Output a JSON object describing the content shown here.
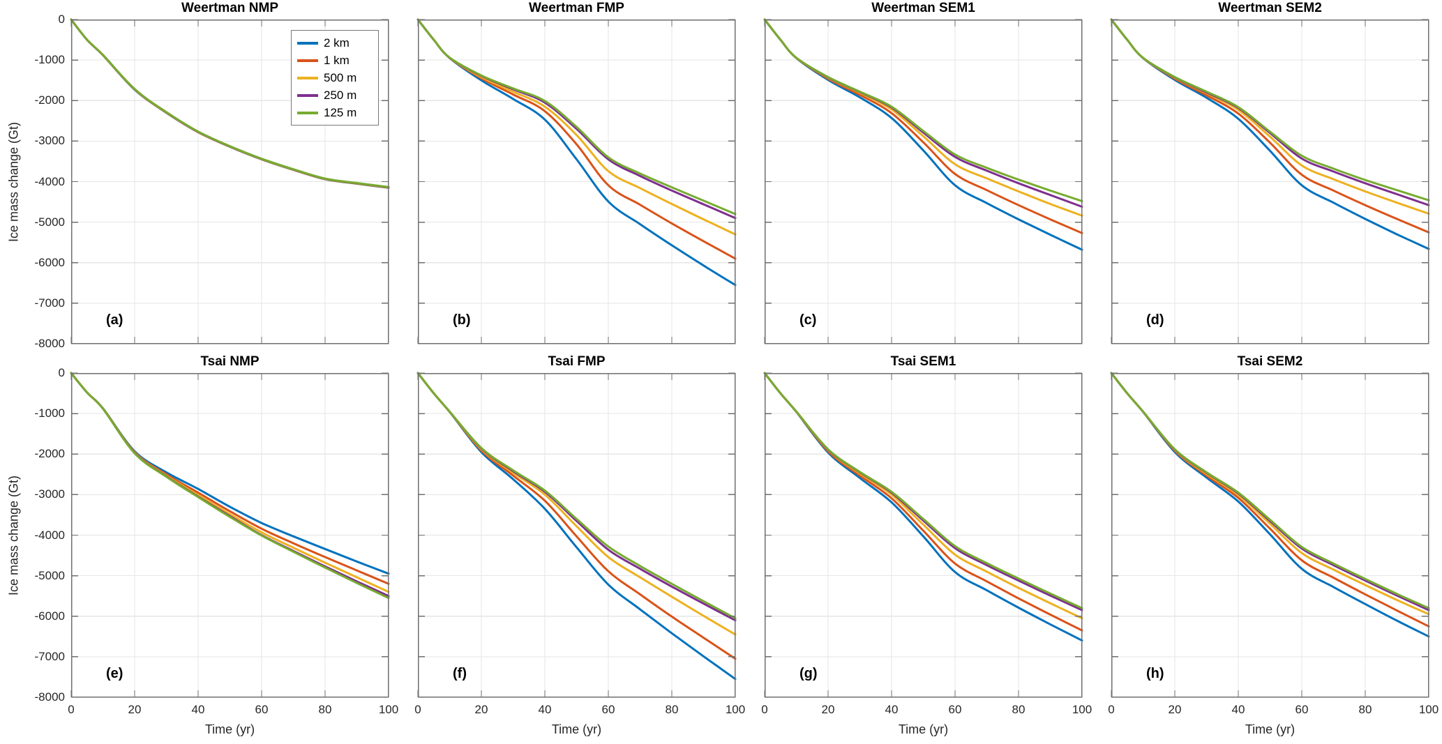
{
  "chart_data": {
    "type": "line",
    "description": "2x4 grid of small-multiple line charts of ice mass change vs time for two friction laws (Weertman, Tsai) and four melt parameterizations (NMP, FMP, SEM1, SEM2) at five mesh resolutions",
    "xlabel": "Time (yr)",
    "ylabel": "Ice mass change (Gt)",
    "xlim": [
      0,
      100
    ],
    "ylim": [
      -8000,
      0
    ],
    "xticklabels": [
      "0",
      "20",
      "40",
      "60",
      "80",
      "100"
    ],
    "yticklabels": [
      "0",
      "-1000",
      "-2000",
      "-3000",
      "-4000",
      "-5000",
      "-6000",
      "-7000",
      "-8000"
    ],
    "grid": true,
    "x": [
      0,
      5,
      10,
      20,
      30,
      40,
      50,
      60,
      70,
      80,
      90,
      100
    ],
    "legend": {
      "location": "upper-right inside panel (a)",
      "entries": [
        {
          "label": "2 km",
          "color": "#0072BD"
        },
        {
          "label": "1 km",
          "color": "#D95319"
        },
        {
          "label": "500 m",
          "color": "#EDB120"
        },
        {
          "label": "250 m",
          "color": "#7E2F8E"
        },
        {
          "label": "125 m",
          "color": "#77AC30"
        }
      ]
    },
    "panels": [
      {
        "title": "Weertman NMP",
        "panel_label": "(a)",
        "series": [
          {
            "name": "2 km",
            "values": [
              0,
              -500,
              -880,
              -1730,
              -2300,
              -2780,
              -3140,
              -3450,
              -3710,
              -3940,
              -4050,
              -4150
            ]
          },
          {
            "name": "1 km",
            "values": [
              0,
              -500,
              -878,
              -1726,
              -2296,
              -2776,
              -3136,
              -3446,
              -3706,
              -3936,
              -4046,
              -4146
            ]
          },
          {
            "name": "500 m",
            "values": [
              0,
              -500,
              -876,
              -1722,
              -2292,
              -2772,
              -3132,
              -3442,
              -3702,
              -3932,
              -4042,
              -4142
            ]
          },
          {
            "name": "250 m",
            "values": [
              0,
              -500,
              -874,
              -1718,
              -2288,
              -2768,
              -3128,
              -3438,
              -3698,
              -3928,
              -4038,
              -4138
            ]
          },
          {
            "name": "125 m",
            "values": [
              0,
              -500,
              -872,
              -1714,
              -2284,
              -2764,
              -3124,
              -3434,
              -3694,
              -3924,
              -4034,
              -4134
            ]
          }
        ]
      },
      {
        "title": "Weertman FMP",
        "panel_label": "(b)",
        "series": [
          {
            "name": "2 km",
            "values": [
              0,
              -500,
              -950,
              -1500,
              -1960,
              -2470,
              -3450,
              -4490,
              -5050,
              -5570,
              -6070,
              -6550
            ]
          },
          {
            "name": "1 km",
            "values": [
              0,
              -500,
              -948,
              -1450,
              -1850,
              -2260,
              -3080,
              -4090,
              -4570,
              -5030,
              -5470,
              -5900
            ]
          },
          {
            "name": "500 m",
            "values": [
              0,
              -500,
              -945,
              -1420,
              -1780,
              -2150,
              -2850,
              -3740,
              -4160,
              -4550,
              -4930,
              -5300
            ]
          },
          {
            "name": "250 m",
            "values": [
              0,
              -500,
              -942,
              -1390,
              -1720,
              -2050,
              -2700,
              -3450,
              -3860,
              -4220,
              -4560,
              -4900
            ]
          },
          {
            "name": "125 m",
            "values": [
              0,
              -500,
              -940,
              -1380,
              -1700,
              -2010,
              -2650,
              -3400,
              -3800,
              -4140,
              -4470,
              -4800
            ]
          }
        ]
      },
      {
        "title": "Weertman SEM1",
        "panel_label": "(c)",
        "series": [
          {
            "name": "2 km",
            "values": [
              0,
              -500,
              -952,
              -1490,
              -1920,
              -2430,
              -3230,
              -4090,
              -4530,
              -4930,
              -5310,
              -5680
            ]
          },
          {
            "name": "1 km",
            "values": [
              0,
              -500,
              -950,
              -1460,
              -1860,
              -2310,
              -3030,
              -3810,
              -4210,
              -4580,
              -4930,
              -5270
            ]
          },
          {
            "name": "500 m",
            "values": [
              0,
              -500,
              -948,
              -1440,
              -1810,
              -2220,
              -2880,
              -3570,
              -3920,
              -4240,
              -4550,
              -4840
            ]
          },
          {
            "name": "250 m",
            "values": [
              0,
              -500,
              -946,
              -1430,
              -1790,
              -2170,
              -2790,
              -3390,
              -3730,
              -4040,
              -4330,
              -4620
            ]
          },
          {
            "name": "125 m",
            "values": [
              0,
              -500,
              -945,
              -1420,
              -1780,
              -2150,
              -2750,
              -3330,
              -3660,
              -3950,
              -4220,
              -4480
            ]
          }
        ]
      },
      {
        "title": "Weertman SEM2",
        "panel_label": "(d)",
        "series": [
          {
            "name": "2 km",
            "values": [
              0,
              -500,
              -952,
              -1490,
              -1930,
              -2450,
              -3240,
              -4090,
              -4520,
              -4920,
              -5300,
              -5660
            ]
          },
          {
            "name": "1 km",
            "values": [
              0,
              -500,
              -950,
              -1460,
              -1870,
              -2320,
              -3040,
              -3830,
              -4220,
              -4580,
              -4920,
              -5250
            ]
          },
          {
            "name": "500 m",
            "values": [
              0,
              -500,
              -948,
              -1440,
              -1820,
              -2230,
              -2890,
              -3600,
              -3940,
              -4240,
              -4520,
              -4790
            ]
          },
          {
            "name": "250 m",
            "values": [
              0,
              -500,
              -946,
              -1430,
              -1800,
              -2180,
              -2800,
              -3430,
              -3750,
              -4040,
              -4310,
              -4580
            ]
          },
          {
            "name": "125 m",
            "values": [
              0,
              -500,
              -945,
              -1420,
              -1780,
              -2160,
              -2770,
              -3360,
              -3680,
              -3960,
              -4210,
              -4460
            ]
          }
        ]
      },
      {
        "title": "Tsai NMP",
        "panel_label": "(e)",
        "series": [
          {
            "name": "2 km",
            "values": [
              0,
              -480,
              -870,
              -1930,
              -2450,
              -2860,
              -3300,
              -3700,
              -4030,
              -4340,
              -4650,
              -4950
            ]
          },
          {
            "name": "1 km",
            "values": [
              0,
              -480,
              -872,
              -1950,
              -2500,
              -2950,
              -3410,
              -3840,
              -4200,
              -4540,
              -4870,
              -5200
            ]
          },
          {
            "name": "500 m",
            "values": [
              0,
              -480,
              -874,
              -1960,
              -2530,
              -3010,
              -3480,
              -3930,
              -4310,
              -4680,
              -5040,
              -5400
            ]
          },
          {
            "name": "250 m",
            "values": [
              0,
              -480,
              -876,
              -1970,
              -2550,
              -3050,
              -3530,
              -4000,
              -4390,
              -4770,
              -5140,
              -5500
            ]
          },
          {
            "name": "125 m",
            "values": [
              0,
              -480,
              -878,
              -1980,
              -2560,
              -3060,
              -3550,
              -4010,
              -4410,
              -4800,
              -5180,
              -5550
            ]
          }
        ]
      },
      {
        "title": "Tsai FMP",
        "panel_label": "(f)",
        "series": [
          {
            "name": "2 km",
            "values": [
              0,
              -500,
              -958,
              -1950,
              -2620,
              -3350,
              -4300,
              -5220,
              -5830,
              -6420,
              -6990,
              -7550
            ]
          },
          {
            "name": "1 km",
            "values": [
              0,
              -500,
              -956,
              -1910,
              -2530,
              -3150,
              -4030,
              -4890,
              -5460,
              -6010,
              -6530,
              -7050
            ]
          },
          {
            "name": "500 m",
            "values": [
              0,
              -500,
              -954,
              -1880,
              -2460,
              -3000,
              -3780,
              -4540,
              -5040,
              -5520,
              -5990,
              -6450
            ]
          },
          {
            "name": "250 m",
            "values": [
              0,
              -500,
              -952,
              -1860,
              -2420,
              -2930,
              -3650,
              -4360,
              -4830,
              -5270,
              -5690,
              -6100
            ]
          },
          {
            "name": "125 m",
            "values": [
              0,
              -500,
              -950,
              -1850,
              -2400,
              -2900,
              -3600,
              -4280,
              -4760,
              -5200,
              -5630,
              -6050
            ]
          }
        ]
      },
      {
        "title": "Tsai SEM1",
        "panel_label": "(g)",
        "series": [
          {
            "name": "2 km",
            "values": [
              0,
              -500,
              -957,
              -1960,
              -2590,
              -3190,
              -4030,
              -4910,
              -5360,
              -5790,
              -6200,
              -6600
            ]
          },
          {
            "name": "1 km",
            "values": [
              0,
              -500,
              -955,
              -1930,
              -2530,
              -3090,
              -3890,
              -4700,
              -5140,
              -5560,
              -5960,
              -6350
            ]
          },
          {
            "name": "500 m",
            "values": [
              0,
              -500,
              -953,
              -1900,
              -2480,
              -3000,
              -3740,
              -4480,
              -4900,
              -5300,
              -5680,
              -6050
            ]
          },
          {
            "name": "250 m",
            "values": [
              0,
              -500,
              -951,
              -1890,
              -2450,
              -2950,
              -3640,
              -4320,
              -4740,
              -5120,
              -5490,
              -5850
            ]
          },
          {
            "name": "125 m",
            "values": [
              0,
              -500,
              -950,
              -1880,
              -2440,
              -2930,
              -3600,
              -4270,
              -4690,
              -5070,
              -5440,
              -5800
            ]
          }
        ]
      },
      {
        "title": "Tsai SEM2",
        "panel_label": "(h)",
        "series": [
          {
            "name": "2 km",
            "values": [
              0,
              -500,
              -956,
              -1950,
              -2580,
              -3170,
              -3980,
              -4830,
              -5280,
              -5700,
              -6110,
              -6500
            ]
          },
          {
            "name": "1 km",
            "values": [
              0,
              -500,
              -954,
              -1920,
              -2530,
              -3080,
              -3840,
              -4620,
              -5050,
              -5460,
              -5860,
              -6250
            ]
          },
          {
            "name": "500 m",
            "values": [
              0,
              -500,
              -952,
              -1900,
              -2490,
              -3010,
              -3720,
              -4440,
              -4850,
              -5230,
              -5600,
              -5950
            ]
          },
          {
            "name": "250 m",
            "values": [
              0,
              -500,
              -951,
              -1890,
              -2460,
              -2970,
              -3650,
              -4330,
              -4740,
              -5120,
              -5490,
              -5850
            ]
          },
          {
            "name": "125 m",
            "values": [
              0,
              -500,
              -950,
              -1880,
              -2450,
              -2950,
              -3620,
              -4290,
              -4700,
              -5080,
              -5450,
              -5800
            ]
          }
        ]
      }
    ]
  }
}
